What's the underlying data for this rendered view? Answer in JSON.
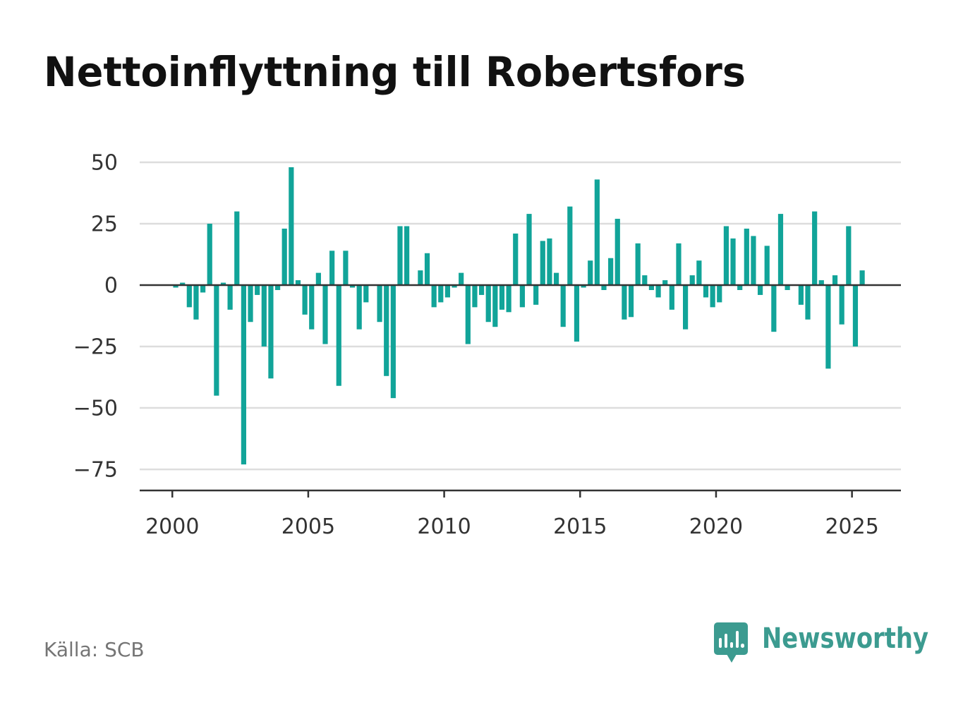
{
  "source": "Källa: SCB",
  "brand": {
    "name": "Newsworthy",
    "icon": "newsworthy-logo-icon"
  },
  "colors": {
    "background": "#ffffff",
    "bar": "#11a499",
    "grid": "#dddddd",
    "axis": "#333333",
    "brand": "#3c9b90",
    "source": "#757575",
    "title": "#111111"
  },
  "chart_data": {
    "type": "bar",
    "title": "Nettoinflyttning till Robertsfors",
    "xlabel": "",
    "ylabel": "",
    "x": [
      "2000-Q1",
      "2000-Q2",
      "2000-Q3",
      "2000-Q4",
      "2001-Q1",
      "2001-Q2",
      "2001-Q3",
      "2001-Q4",
      "2002-Q1",
      "2002-Q2",
      "2002-Q3",
      "2002-Q4",
      "2003-Q1",
      "2003-Q2",
      "2003-Q3",
      "2003-Q4",
      "2004-Q1",
      "2004-Q2",
      "2004-Q3",
      "2004-Q4",
      "2005-Q1",
      "2005-Q2",
      "2005-Q3",
      "2005-Q4",
      "2006-Q1",
      "2006-Q2",
      "2006-Q3",
      "2006-Q4",
      "2007-Q1",
      "2007-Q2",
      "2007-Q3",
      "2007-Q4",
      "2008-Q1",
      "2008-Q2",
      "2008-Q3",
      "2008-Q4",
      "2009-Q1",
      "2009-Q2",
      "2009-Q3",
      "2009-Q4",
      "2010-Q1",
      "2010-Q2",
      "2010-Q3",
      "2010-Q4",
      "2011-Q1",
      "2011-Q2",
      "2011-Q3",
      "2011-Q4",
      "2012-Q1",
      "2012-Q2",
      "2012-Q3",
      "2012-Q4",
      "2013-Q1",
      "2013-Q2",
      "2013-Q3",
      "2013-Q4",
      "2014-Q1",
      "2014-Q2",
      "2014-Q3",
      "2014-Q4",
      "2015-Q1",
      "2015-Q2",
      "2015-Q3",
      "2015-Q4",
      "2016-Q1",
      "2016-Q2",
      "2016-Q3",
      "2016-Q4",
      "2017-Q1",
      "2017-Q2",
      "2017-Q3",
      "2017-Q4",
      "2018-Q1",
      "2018-Q2",
      "2018-Q3",
      "2018-Q4",
      "2019-Q1",
      "2019-Q2",
      "2019-Q3",
      "2019-Q4",
      "2020-Q1",
      "2020-Q2",
      "2020-Q3",
      "2020-Q4",
      "2021-Q1",
      "2021-Q2",
      "2021-Q3",
      "2021-Q4",
      "2022-Q1",
      "2022-Q2",
      "2022-Q3",
      "2022-Q4",
      "2023-Q1",
      "2023-Q2",
      "2023-Q3",
      "2023-Q4",
      "2024-Q1",
      "2024-Q2",
      "2024-Q3",
      "2024-Q4",
      "2025-Q1",
      "2025-Q2"
    ],
    "values": [
      -1,
      1,
      -9,
      -14,
      -3,
      25,
      -45,
      1,
      -10,
      30,
      -73,
      -15,
      -4,
      -25,
      -38,
      -2,
      23,
      48,
      2,
      -12,
      -18,
      5,
      -24,
      14,
      -41,
      14,
      -1,
      -18,
      -7,
      0,
      -15,
      -37,
      -46,
      24,
      24,
      0,
      6,
      13,
      -9,
      -7,
      -5,
      -1,
      5,
      -24,
      -9,
      -4,
      -15,
      -17,
      -10,
      -11,
      21,
      -9,
      29,
      -8,
      18,
      19,
      5,
      -17,
      32,
      -23,
      -1,
      10,
      43,
      -2,
      11,
      27,
      -14,
      -13,
      17,
      4,
      -2,
      -5,
      2,
      -10,
      17,
      -18,
      4,
      10,
      -5,
      -9,
      -7,
      24,
      19,
      -2,
      23,
      20,
      -4,
      16,
      -19,
      29,
      -2,
      0,
      -8,
      -14,
      30,
      2,
      -34,
      4,
      -16,
      24,
      -25,
      6
    ],
    "xlim": [
      1998.8,
      2026.8
    ],
    "ylim": [
      -83.6,
      50
    ],
    "x_ticks": [
      {
        "value": 2000,
        "label": "2000"
      },
      {
        "value": 2005,
        "label": "2005"
      },
      {
        "value": 2010,
        "label": "2010"
      },
      {
        "value": 2015,
        "label": "2015"
      },
      {
        "value": 2020,
        "label": "2020"
      },
      {
        "value": 2025,
        "label": "2025"
      }
    ],
    "y_ticks": [
      {
        "value": 50,
        "label": "50"
      },
      {
        "value": 25,
        "label": "25"
      },
      {
        "value": 0,
        "label": "0"
      },
      {
        "value": -25,
        "label": "−25"
      },
      {
        "value": -50,
        "label": "−50"
      },
      {
        "value": -75,
        "label": "−75"
      }
    ],
    "grid": true,
    "zero_line": true
  }
}
